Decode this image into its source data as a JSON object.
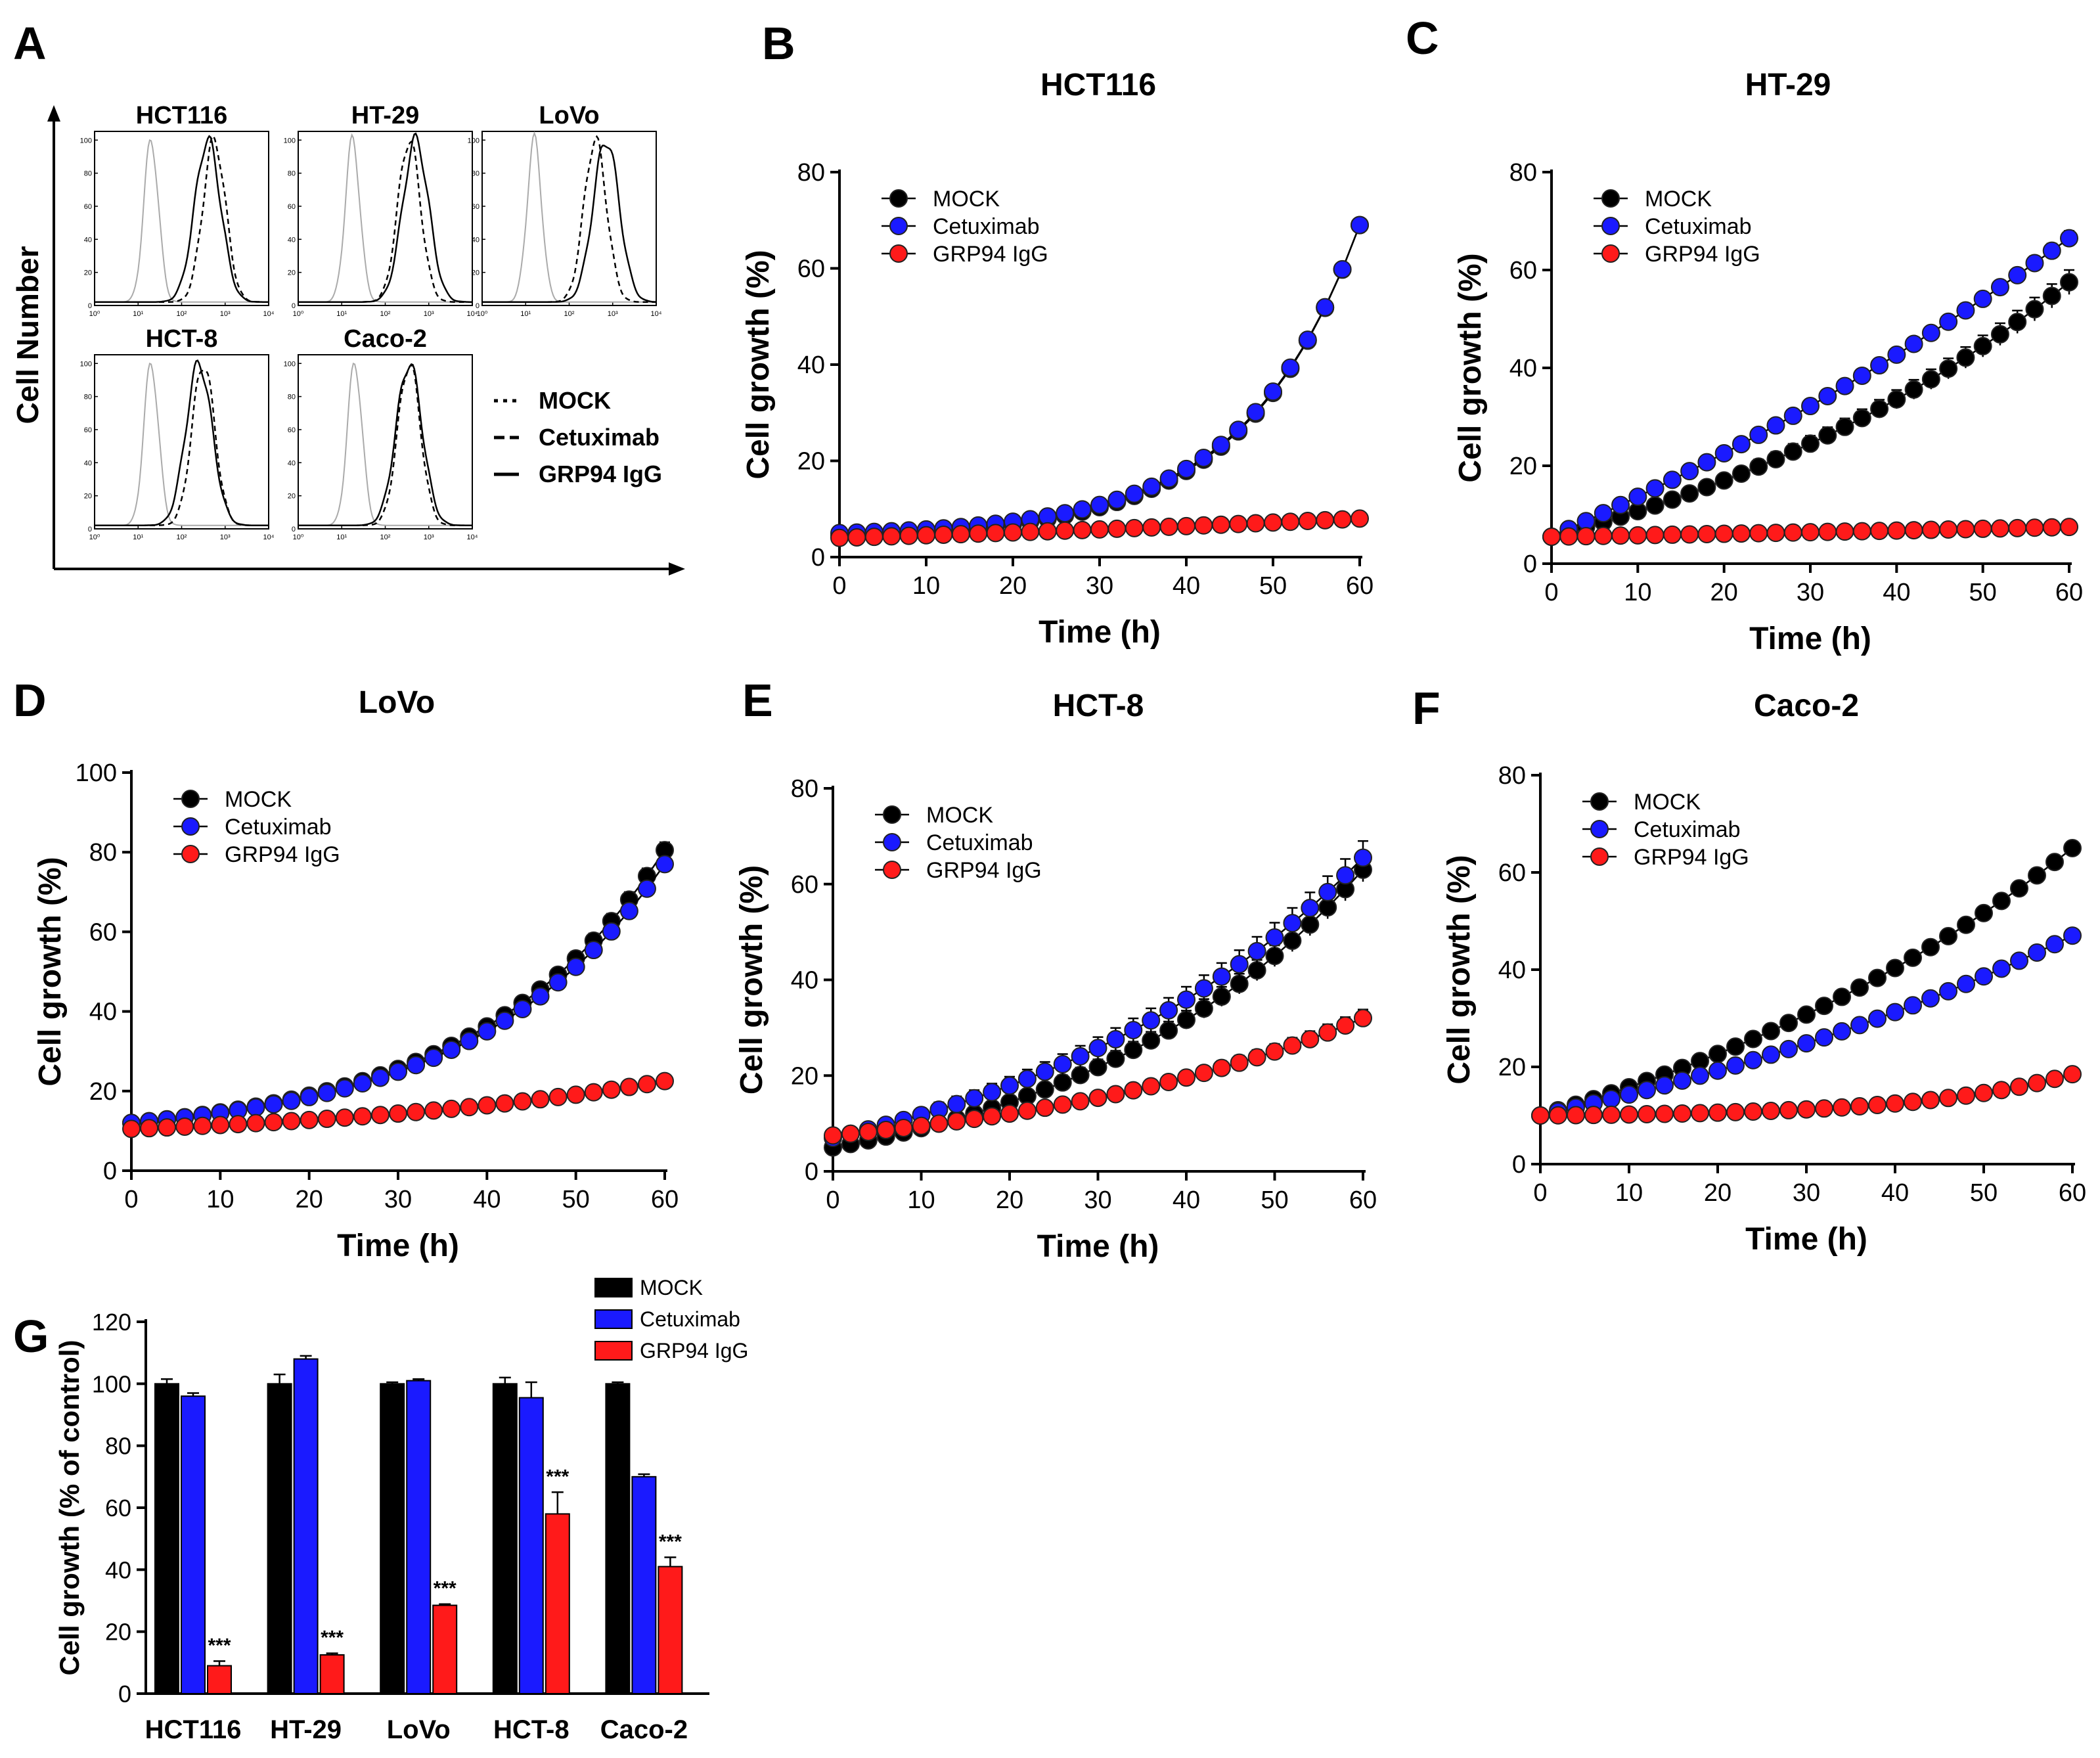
{
  "figure": {
    "panel_labels": [
      "A",
      "B",
      "C",
      "D",
      "E",
      "F",
      "G"
    ],
    "legend_labels": [
      "MOCK",
      "Cetuximab",
      "GRP94 IgG"
    ],
    "colors": {
      "MOCK": "#000000",
      "Cetuximab": "#1a1aff",
      "GRP94 IgG": "#ff1a1a"
    }
  },
  "panel_a": {
    "label": "A",
    "ylabel": "Cell Number",
    "legend": [
      {
        "label": "MOCK",
        "style": "dotted"
      },
      {
        "label": "Cetuximab",
        "style": "dashed"
      },
      {
        "label": "GRP94 IgG",
        "style": "solid"
      }
    ],
    "subplots": [
      {
        "title": "HCT116",
        "mock_peak": 1.3,
        "cetux_peak": 2.75,
        "grp_peak": 2.6
      },
      {
        "title": "HT-29",
        "mock_peak": 1.25,
        "cetux_peak": 2.55,
        "grp_peak": 2.7
      },
      {
        "title": "LoVo",
        "mock_peak": 1.2,
        "cetux_peak": 2.6,
        "grp_peak": 2.85
      },
      {
        "title": "HCT-8",
        "mock_peak": 1.3,
        "cetux_peak": 2.5,
        "grp_peak": 2.4
      },
      {
        "title": "Caco-2",
        "mock_peak": 1.3,
        "cetux_peak": 2.55,
        "grp_peak": 2.55
      }
    ],
    "y_ticks": [
      "0",
      "20",
      "40",
      "60",
      "80",
      "100"
    ],
    "x_ticks": [
      "10⁰",
      "10¹",
      "10²",
      "10³",
      "10⁴"
    ]
  },
  "chart_data": [
    {
      "panel": "B",
      "type": "line",
      "title": "HCT116",
      "xlabel": "Time (h)",
      "ylabel": "Cell growth (%)",
      "xlim": [
        0,
        60
      ],
      "ylim": [
        0,
        80
      ],
      "xticks": [
        0,
        10,
        20,
        30,
        40,
        50,
        60
      ],
      "yticks": [
        0,
        20,
        40,
        60,
        80
      ],
      "series": [
        {
          "name": "MOCK",
          "y0": 4.5,
          "y60": 69,
          "k": 4.6,
          "err": 0.8
        },
        {
          "name": "Cetuximab",
          "y0": 5,
          "y60": 69,
          "k": 4.6,
          "err": 0.8
        },
        {
          "name": "GRP94 IgG",
          "y0": 4,
          "y60": 8,
          "k": 0.5,
          "err": 0.4
        }
      ]
    },
    {
      "panel": "C",
      "type": "line",
      "title": "HT-29",
      "xlabel": "Time (h)",
      "ylabel": "Cell growth (%)",
      "xlim": [
        0,
        60
      ],
      "ylim": [
        0,
        80
      ],
      "xticks": [
        0,
        10,
        20,
        30,
        40,
        50,
        60
      ],
      "yticks": [
        0,
        20,
        40,
        60,
        80
      ],
      "series": [
        {
          "name": "MOCK",
          "y0": 5.5,
          "y60": 57.5,
          "k": 1.1,
          "err": 2.5
        },
        {
          "name": "Cetuximab",
          "y0": 5.5,
          "y60": 66.5,
          "k": 0.5,
          "err": 1.5
        },
        {
          "name": "GRP94 IgG",
          "y0": 5.5,
          "y60": 7.5,
          "k": 0.3,
          "err": 0.5
        }
      ]
    },
    {
      "panel": "D",
      "type": "line",
      "title": "LoVo",
      "xlabel": "Time (h)",
      "ylabel": "Cell growth (%)",
      "xlim": [
        0,
        60
      ],
      "ylim": [
        0,
        100
      ],
      "xticks": [
        0,
        10,
        20,
        30,
        40,
        50,
        60
      ],
      "yticks": [
        0,
        20,
        40,
        60,
        80,
        100
      ],
      "series": [
        {
          "name": "MOCK",
          "y0": 12,
          "y60": 80.5,
          "k": 2.8,
          "err": 2.0
        },
        {
          "name": "Cetuximab",
          "y0": 12,
          "y60": 77,
          "k": 2.8,
          "err": 2.0
        },
        {
          "name": "GRP94 IgG",
          "y0": 10.5,
          "y60": 22.5,
          "k": 1.5,
          "err": 0.7
        }
      ]
    },
    {
      "panel": "E",
      "type": "line",
      "title": "HCT-8",
      "xlabel": "Time (h)",
      "ylabel": "Cell growth (%)",
      "xlim": [
        0,
        60
      ],
      "ylim": [
        0,
        80
      ],
      "xticks": [
        0,
        10,
        20,
        30,
        40,
        50,
        60
      ],
      "yticks": [
        0,
        20,
        40,
        60,
        80
      ],
      "series": [
        {
          "name": "MOCK",
          "y0": 5,
          "y60": 63,
          "k": 1.8,
          "err": 2.5
        },
        {
          "name": "Cetuximab",
          "y0": 7,
          "y60": 65.5,
          "k": 1.5,
          "err": 3.5
        },
        {
          "name": "GRP94 IgG",
          "y0": 7.5,
          "y60": 32,
          "k": 1.5,
          "err": 1.8
        }
      ]
    },
    {
      "panel": "F",
      "type": "line",
      "title": "Caco-2",
      "xlabel": "Time (h)",
      "ylabel": "Cell growth (%)",
      "xlim": [
        0,
        60
      ],
      "ylim": [
        0,
        80
      ],
      "xticks": [
        0,
        10,
        20,
        30,
        40,
        50,
        60
      ],
      "yticks": [
        0,
        20,
        40,
        60,
        80
      ],
      "series": [
        {
          "name": "MOCK",
          "y0": 10,
          "y60": 65,
          "k": 1.0,
          "err": 0.8
        },
        {
          "name": "Cetuximab",
          "y0": 10,
          "y60": 47,
          "k": 0.8,
          "err": 0.8
        },
        {
          "name": "GRP94 IgG",
          "y0": 10,
          "y60": 18.5,
          "k": 3.5,
          "err": 0.6
        }
      ]
    },
    {
      "panel": "G",
      "type": "bar",
      "ylabel": "Cell growth (% of control)",
      "ylim": [
        0,
        120
      ],
      "yticks": [
        0,
        20,
        40,
        60,
        80,
        100,
        120
      ],
      "categories": [
        "HCT116",
        "HT-29",
        "LoVo",
        "HCT-8",
        "Caco-2"
      ],
      "series": [
        {
          "name": "MOCK",
          "values": [
            100,
            100,
            100,
            100,
            100
          ],
          "errors": [
            1.5,
            3,
            0.5,
            2,
            0.5
          ]
        },
        {
          "name": "Cetuximab",
          "values": [
            96,
            108,
            101,
            95.5,
            70
          ],
          "errors": [
            1,
            1,
            0.5,
            5,
            0.8
          ]
        },
        {
          "name": "GRP94 IgG",
          "values": [
            9,
            12.5,
            28.5,
            58,
            41
          ],
          "errors": [
            1.5,
            0.5,
            0.4,
            7,
            3
          ]
        }
      ],
      "significance": [
        "***",
        "***",
        "***",
        "***",
        "***"
      ]
    }
  ]
}
